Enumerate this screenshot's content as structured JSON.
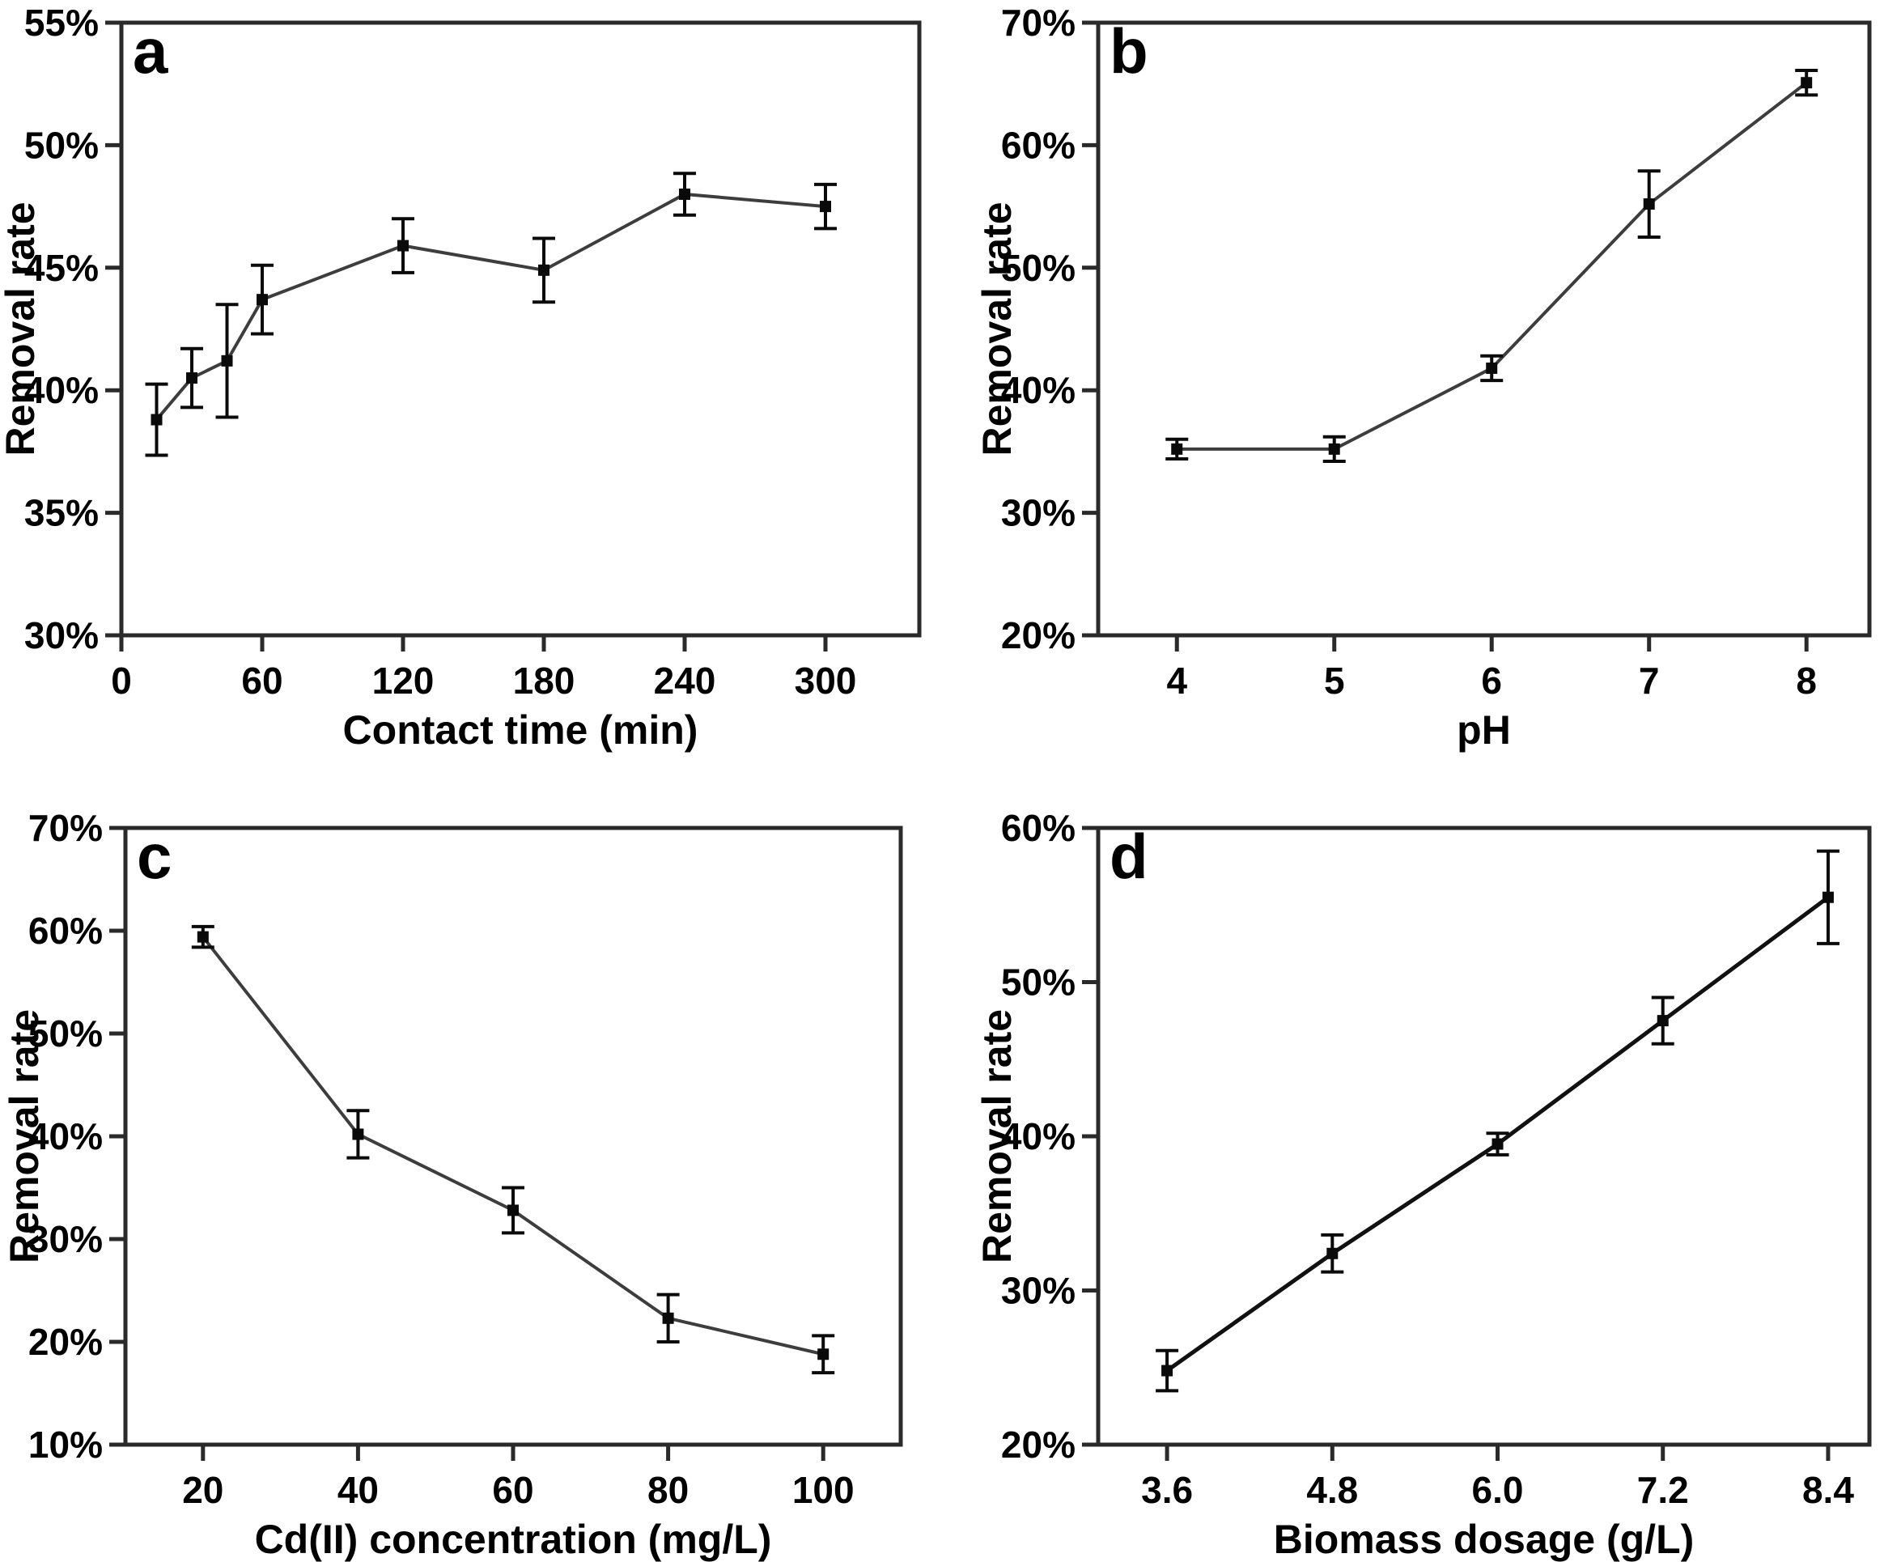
{
  "figure": {
    "background": "#ffffff",
    "axis_color": "#2a2a2a",
    "text_color": "#000000",
    "error_bar_color": "#0a0a0a",
    "marker_color": "#0a0a0a"
  },
  "chart_data": [
    {
      "type": "line",
      "panel_label": "a",
      "xlabel": "Contact time (min)",
      "ylabel": "Removal rate",
      "x": [
        15,
        30,
        45,
        60,
        120,
        180,
        240,
        300
      ],
      "y": [
        38.8,
        40.5,
        41.2,
        43.7,
        45.9,
        44.9,
        48.0,
        47.5
      ],
      "yerr": [
        1.45,
        1.2,
        2.3,
        1.4,
        1.1,
        1.3,
        0.85,
        0.9
      ],
      "xlim": [
        0,
        340
      ],
      "ylim": [
        30,
        55
      ],
      "xticks": [
        0,
        60,
        120,
        180,
        240,
        300
      ],
      "xtick_labels": [
        "0",
        "60",
        "120",
        "180",
        "240",
        "300"
      ],
      "yticks": [
        30,
        35,
        40,
        45,
        50,
        55
      ],
      "ytick_labels": [
        "30%",
        "35%",
        "40%",
        "45%",
        "50%",
        "55%"
      ],
      "line_color": "#3d3d3d",
      "line_width": 4,
      "marker": "square",
      "grid": false,
      "legend": null
    },
    {
      "type": "line",
      "panel_label": "b",
      "xlabel": "pH",
      "ylabel": "Removal rate",
      "x": [
        4,
        5,
        6,
        7,
        8
      ],
      "y": [
        35.2,
        35.2,
        41.8,
        55.2,
        65.1
      ],
      "yerr": [
        0.8,
        1.0,
        1.0,
        2.7,
        1.0
      ],
      "xlim": [
        3.5,
        8.4
      ],
      "ylim": [
        20,
        70
      ],
      "xticks": [
        4,
        5,
        6,
        7,
        8
      ],
      "xtick_labels": [
        "4",
        "5",
        "6",
        "7",
        "8"
      ],
      "yticks": [
        20,
        30,
        40,
        50,
        60,
        70
      ],
      "ytick_labels": [
        "20%",
        "30%",
        "40%",
        "50%",
        "60%",
        "70%"
      ],
      "line_color": "#3d3d3d",
      "line_width": 4,
      "marker": "square",
      "grid": false,
      "legend": null
    },
    {
      "type": "line",
      "panel_label": "c",
      "xlabel": "Cd(II) concentration (mg/L)",
      "ylabel": "Removal rate",
      "x": [
        20,
        40,
        60,
        80,
        100
      ],
      "y": [
        59.4,
        40.2,
        32.8,
        22.3,
        18.8
      ],
      "yerr": [
        1.0,
        2.3,
        2.2,
        2.3,
        1.8
      ],
      "xlim": [
        10,
        110
      ],
      "ylim": [
        10,
        70
      ],
      "xticks": [
        20,
        40,
        60,
        80,
        100
      ],
      "xtick_labels": [
        "20",
        "40",
        "60",
        "80",
        "100"
      ],
      "yticks": [
        10,
        20,
        30,
        40,
        50,
        60,
        70
      ],
      "ytick_labels": [
        "10%",
        "20%",
        "30%",
        "40%",
        "50%",
        "60%",
        "70%"
      ],
      "line_color": "#3d3d3d",
      "line_width": 4,
      "marker": "square",
      "grid": false,
      "legend": null
    },
    {
      "type": "line",
      "panel_label": "d",
      "xlabel": "Biomass dosage (g/L)",
      "ylabel": "Removal rate",
      "x": [
        3.6,
        4.8,
        6.0,
        7.2,
        8.4
      ],
      "y": [
        24.8,
        32.4,
        39.5,
        47.5,
        55.5
      ],
      "yerr": [
        1.3,
        1.2,
        0.7,
        1.5,
        3.0
      ],
      "xlim": [
        3.1,
        8.7
      ],
      "ylim": [
        20,
        60
      ],
      "xticks": [
        3.6,
        4.8,
        6.0,
        7.2,
        8.4
      ],
      "xtick_labels": [
        "3.6",
        "4.8",
        "6.0",
        "7.2",
        "8.4"
      ],
      "yticks": [
        20,
        30,
        40,
        50,
        60
      ],
      "ytick_labels": [
        "20%",
        "30%",
        "40%",
        "50%",
        "60%"
      ],
      "line_color": "#111111",
      "line_width": 5,
      "marker": "square",
      "grid": false,
      "legend": null
    }
  ]
}
